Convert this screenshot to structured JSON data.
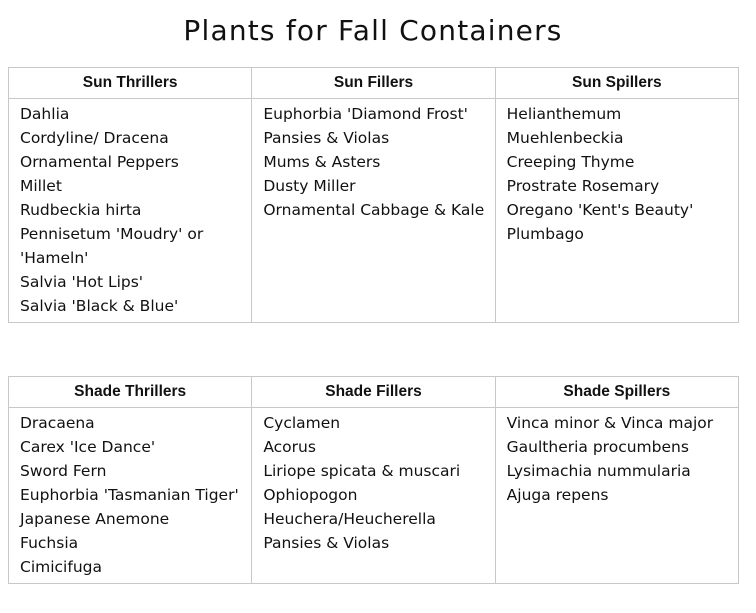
{
  "title": "Plants for Fall Containers",
  "sun_table": {
    "columns": [
      {
        "header": "Sun Thrillers",
        "plants": [
          "Dahlia",
          "Cordyline/ Dracena",
          "Ornamental Peppers",
          "Millet",
          "Rudbeckia hirta",
          "Pennisetum 'Moudry' or 'Hameln'",
          "Salvia 'Hot Lips'",
          "Salvia 'Black & Blue'"
        ]
      },
      {
        "header": "Sun Fillers",
        "plants": [
          "Euphorbia 'Diamond Frost'",
          "Pansies & Violas",
          "Mums & Asters",
          "Dusty Miller",
          "Ornamental Cabbage & Kale"
        ]
      },
      {
        "header": "Sun Spillers",
        "plants": [
          "Helianthemum",
          "Muehlenbeckia",
          "Creeping Thyme",
          "Prostrate Rosemary",
          "Oregano 'Kent's Beauty'",
          "Plumbago"
        ]
      }
    ]
  },
  "shade_table": {
    "columns": [
      {
        "header": "Shade Thrillers",
        "plants": [
          "Dracaena",
          "Carex 'Ice Dance'",
          "Sword Fern",
          "Euphorbia 'Tasmanian Tiger'",
          "Japanese Anemone",
          "Fuchsia",
          "Cimicifuga"
        ]
      },
      {
        "header": "Shade Fillers",
        "plants": [
          "Cyclamen",
          "Acorus",
          "Liriope spicata & muscari",
          "Ophiopogon",
          "Heuchera/Heucherella",
          "Pansies & Violas"
        ]
      },
      {
        "header": "Shade Spillers",
        "plants": [
          "Vinca minor & Vinca major",
          "Gaultheria procumbens",
          "Lysimachia nummularia",
          "Ajuga repens"
        ]
      }
    ]
  }
}
